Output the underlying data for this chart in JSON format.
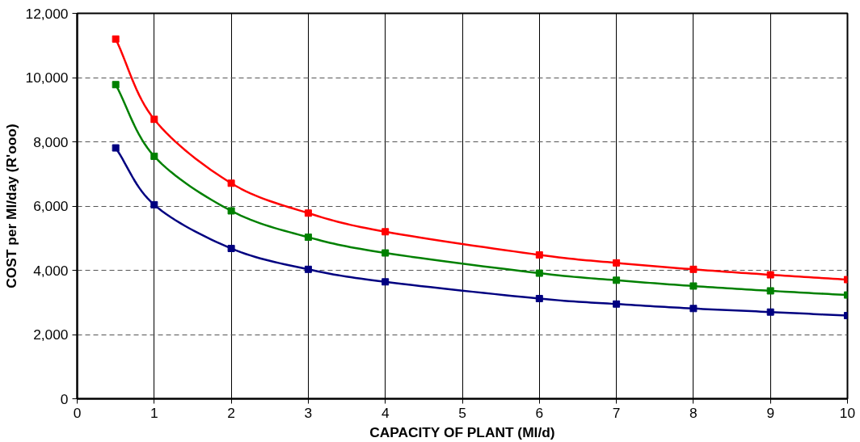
{
  "chart_data": {
    "type": "line",
    "xlabel": "CAPACITY OF PLANT (Ml/d)",
    "ylabel": "COST per Ml/day (R'ooo)",
    "x": [
      0.5,
      1,
      2,
      3,
      4,
      6,
      7,
      8,
      9,
      10
    ],
    "series": [
      {
        "color": "#ff0000",
        "values": [
          11200,
          8700,
          6710,
          5780,
          5200,
          4480,
          4230,
          4030,
          3860,
          3710
        ]
      },
      {
        "color": "#008000",
        "values": [
          9780,
          7550,
          5850,
          5030,
          4540,
          3910,
          3690,
          3510,
          3360,
          3230
        ]
      },
      {
        "color": "#000080",
        "values": [
          7810,
          6040,
          4680,
          4030,
          3640,
          3120,
          2950,
          2810,
          2700,
          2590
        ]
      }
    ],
    "xlim": [
      0,
      10
    ],
    "xticks": [
      0,
      1,
      2,
      3,
      4,
      5,
      6,
      7,
      8,
      9,
      10
    ],
    "ylim": [
      0,
      12000
    ],
    "yticks": [
      0,
      {
        "value": 2000,
        "label": "2,000"
      },
      {
        "value": 4000,
        "label": "4,000"
      },
      {
        "value": 6000,
        "label": "6,000"
      },
      {
        "value": 8000,
        "label": "8,000"
      },
      {
        "value": 10000,
        "label": "10,000"
      },
      {
        "value": 12000,
        "label": "12,000"
      }
    ],
    "grid": true,
    "marker": "square",
    "line_style": "solid"
  }
}
